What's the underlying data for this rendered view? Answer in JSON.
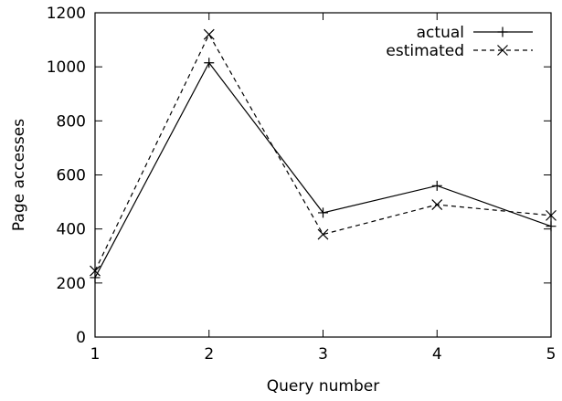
{
  "chart_data": {
    "type": "line",
    "title": "",
    "xlabel": "Query number",
    "ylabel": "Page accesses",
    "x": [
      1,
      2,
      3,
      4,
      5
    ],
    "xlim": [
      1,
      5
    ],
    "ylim": [
      0,
      1200
    ],
    "xticks": [
      "1",
      "2",
      "3",
      "4",
      "5"
    ],
    "yticks": [
      "0",
      "200",
      "400",
      "600",
      "800",
      "1000",
      "1200"
    ],
    "grid": false,
    "legend_position": "top-right",
    "series": [
      {
        "name": "actual",
        "line_style": "solid",
        "marker": "plus",
        "color": "#000000",
        "values": [
          220,
          1015,
          460,
          560,
          410
        ]
      },
      {
        "name": "estimated",
        "line_style": "dashed",
        "marker": "cross",
        "color": "#000000",
        "values": [
          245,
          1120,
          380,
          490,
          450
        ]
      }
    ]
  }
}
